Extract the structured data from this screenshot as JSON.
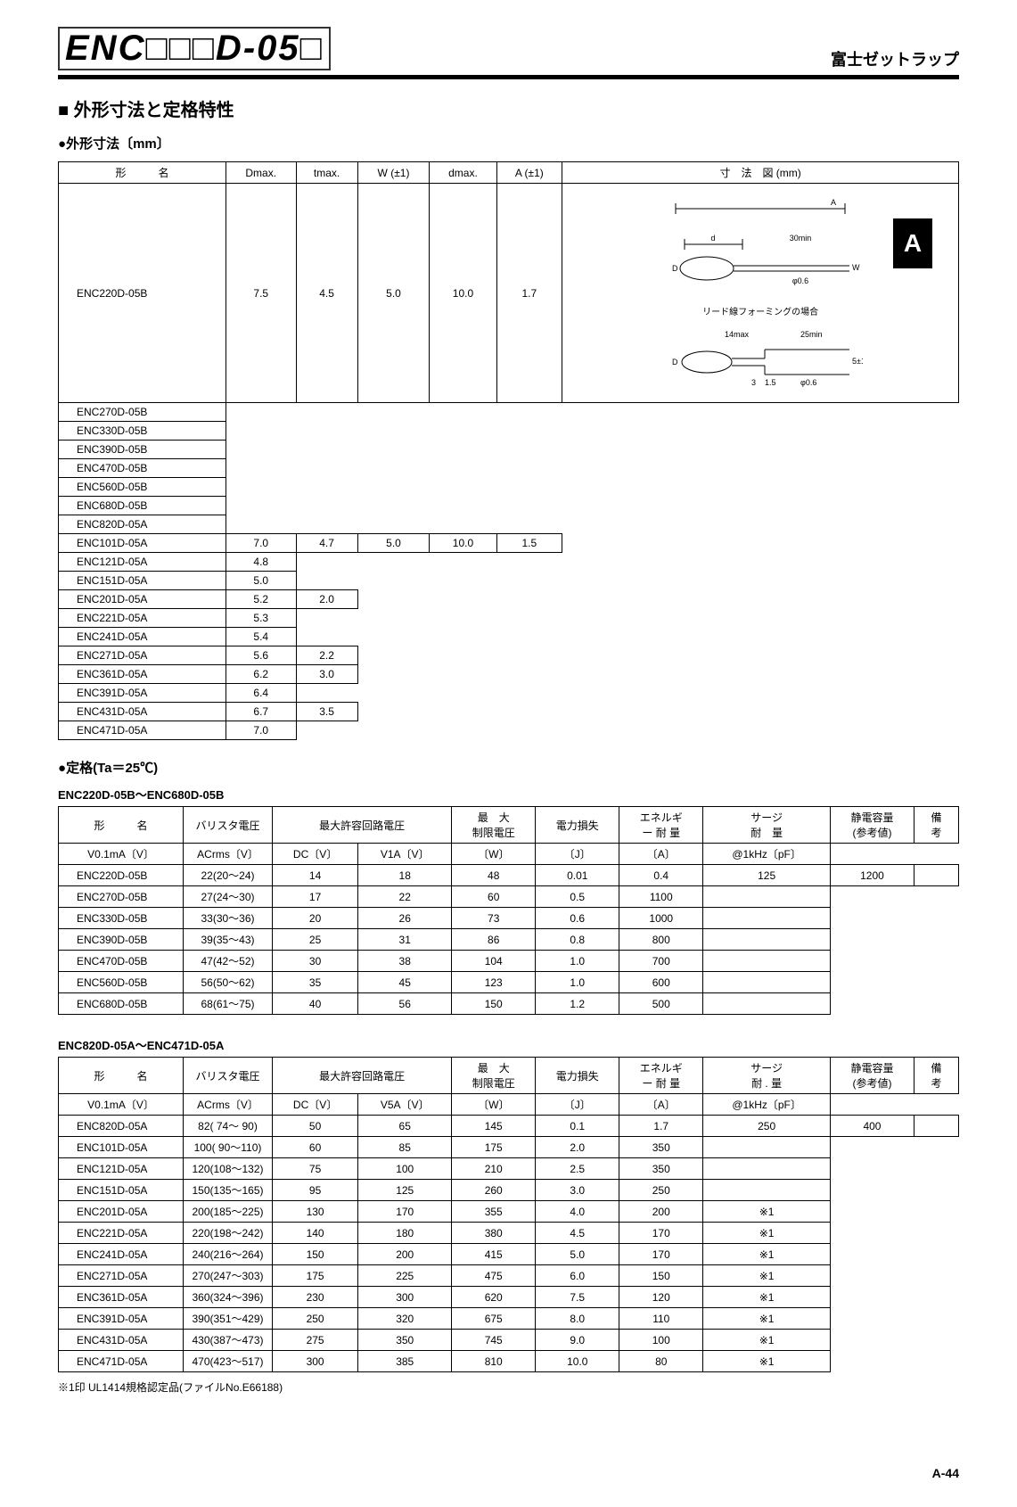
{
  "header": {
    "part_number": "ENC□□□D-05□",
    "brand": "富士ゼットラップ"
  },
  "side_tab": "A",
  "section1": {
    "title": "外形寸法と定格特性",
    "subsection": "外形寸法〔mm〕"
  },
  "dimensions_table": {
    "columns": [
      "形　　　名",
      "Dmax.",
      "tmax.",
      "W (±1)",
      "dmax.",
      "A (±1)",
      "寸　法　図 (mm)"
    ],
    "group1": {
      "names": [
        "ENC220D-05B",
        "ENC270D-05B",
        "ENC330D-05B",
        "ENC390D-05B",
        "ENC470D-05B",
        "ENC560D-05B",
        "ENC680D-05B",
        "ENC820D-05A"
      ],
      "Dmax": "7.5",
      "tmax": "4.5",
      "W": "5.0",
      "dmax": "10.0",
      "A": "1.7"
    },
    "group2": {
      "rows": [
        {
          "name": "ENC101D-05A",
          "tmax": "4.7",
          "A": "1.5"
        },
        {
          "name": "ENC121D-05A",
          "tmax": "4.8",
          "A": "1.5"
        },
        {
          "name": "ENC151D-05A",
          "tmax": "5.0",
          "A": "1.5"
        },
        {
          "name": "ENC201D-05A",
          "tmax": "5.2",
          "A": "2.0"
        },
        {
          "name": "ENC221D-05A",
          "tmax": "5.3",
          "A": "2.0"
        },
        {
          "name": "ENC241D-05A",
          "tmax": "5.4",
          "A": "2.0"
        },
        {
          "name": "ENC271D-05A",
          "tmax": "5.6",
          "A": "2.2"
        },
        {
          "name": "ENC361D-05A",
          "tmax": "6.2",
          "A": "3.0"
        },
        {
          "name": "ENC391D-05A",
          "tmax": "6.4",
          "A": "3.0"
        },
        {
          "name": "ENC431D-05A",
          "tmax": "6.7",
          "A": "3.5"
        },
        {
          "name": "ENC471D-05A",
          "tmax": "7.0",
          "A": "3.5"
        }
      ],
      "Dmax": "7.0",
      "W": "5.0",
      "dmax": "10.0",
      "diagram_caption": "リード線フォーミングの場合",
      "diagram_labels": {
        "l1": "30min",
        "l2": "14max",
        "l3": "25min",
        "d": "d",
        "D": "D",
        "phi": "φ0.6",
        "w": "W",
        "five": "5±1",
        "onefive": "1.5",
        "three": "3",
        "A": "A"
      }
    }
  },
  "ratings": {
    "subsection": "定格(Ta＝25℃)",
    "table1": {
      "label": "ENC220D-05B～ENC680D-05B",
      "header_row1": [
        "形　　　名",
        "バリスタ電圧",
        "最大許容回路電圧",
        "",
        "最　大\n制限電圧",
        "電力損失",
        "エネルギ\nー 耐 量",
        "サージ\n耐　量",
        "静電容量\n(参考値)",
        "備　　考"
      ],
      "header_row2": [
        "",
        "V0.1mA〔V〕",
        "ACrms〔V〕",
        "DC〔V〕",
        "V1A〔V〕",
        "〔W〕",
        "〔J〕",
        "〔A〕",
        "@1kHz〔pF〕",
        ""
      ],
      "rows": [
        {
          "name": "ENC220D-05B",
          "v": "22(20～24)",
          "ac": "14",
          "dc": "18",
          "vmax": "48",
          "w": "",
          "j": "0.4",
          "a": "",
          "c": "1200",
          "note": ""
        },
        {
          "name": "ENC270D-05B",
          "v": "27(24～30)",
          "ac": "17",
          "dc": "22",
          "vmax": "60",
          "w": "",
          "j": "0.5",
          "a": "",
          "c": "1100",
          "note": ""
        },
        {
          "name": "ENC330D-05B",
          "v": "33(30～36)",
          "ac": "20",
          "dc": "26",
          "vmax": "73",
          "w": "",
          "j": "0.6",
          "a": "",
          "c": "1000",
          "note": ""
        },
        {
          "name": "ENC390D-05B",
          "v": "39(35～43)",
          "ac": "25",
          "dc": "31",
          "vmax": "86",
          "w": "",
          "j": "0.8",
          "a": "",
          "c": "800",
          "note": ""
        },
        {
          "name": "ENC470D-05B",
          "v": "47(42～52)",
          "ac": "30",
          "dc": "38",
          "vmax": "104",
          "w": "",
          "j": "1.0",
          "a": "",
          "c": "700",
          "note": ""
        },
        {
          "name": "ENC560D-05B",
          "v": "56(50～62)",
          "ac": "35",
          "dc": "45",
          "vmax": "123",
          "w": "",
          "j": "1.0",
          "a": "",
          "c": "600",
          "note": ""
        },
        {
          "name": "ENC680D-05B",
          "v": "68(61～75)",
          "ac": "40",
          "dc": "56",
          "vmax": "150",
          "w": "",
          "j": "1.2",
          "a": "",
          "c": "500",
          "note": ""
        }
      ],
      "W_merged": "0.01",
      "A_merged": "125"
    },
    "table2": {
      "label": "ENC820D-05A～ENC471D-05A",
      "header_row1": [
        "形　　　名",
        "バリスタ電圧",
        "最大許容回路電圧",
        "",
        "最　大\n制限電圧",
        "電力損失",
        "エネルギ\nー 耐 量",
        "サージ\n耐 . 量",
        "静電容量\n(参考値)",
        "備　　考"
      ],
      "header_row2": [
        "",
        "V0.1mA〔V〕",
        "ACrms〔V〕",
        "DC〔V〕",
        "V5A〔V〕",
        "〔W〕",
        "〔J〕",
        "〔A〕",
        "@1kHz〔pF〕",
        ""
      ],
      "rows": [
        {
          "name": "ENC820D-05A",
          "v": "82( 74～ 90)",
          "ac": "50",
          "dc": "65",
          "vmax": "145",
          "j": "1.7",
          "c": "400",
          "note": ""
        },
        {
          "name": "ENC101D-05A",
          "v": "100( 90～110)",
          "ac": "60",
          "dc": "85",
          "vmax": "175",
          "j": "2.0",
          "c": "350",
          "note": ""
        },
        {
          "name": "ENC121D-05A",
          "v": "120(108～132)",
          "ac": "75",
          "dc": "100",
          "vmax": "210",
          "j": "2.5",
          "c": "350",
          "note": ""
        },
        {
          "name": "ENC151D-05A",
          "v": "150(135～165)",
          "ac": "95",
          "dc": "125",
          "vmax": "260",
          "j": "3.0",
          "c": "250",
          "note": ""
        },
        {
          "name": "ENC201D-05A",
          "v": "200(185～225)",
          "ac": "130",
          "dc": "170",
          "vmax": "355",
          "j": "4.0",
          "c": "200",
          "note": "※1"
        },
        {
          "name": "ENC221D-05A",
          "v": "220(198～242)",
          "ac": "140",
          "dc": "180",
          "vmax": "380",
          "j": "4.5",
          "c": "170",
          "note": "※1"
        },
        {
          "name": "ENC241D-05A",
          "v": "240(216～264)",
          "ac": "150",
          "dc": "200",
          "vmax": "415",
          "j": "5.0",
          "c": "170",
          "note": "※1"
        },
        {
          "name": "ENC271D-05A",
          "v": "270(247～303)",
          "ac": "175",
          "dc": "225",
          "vmax": "475",
          "j": "6.0",
          "c": "150",
          "note": "※1"
        },
        {
          "name": "ENC361D-05A",
          "v": "360(324～396)",
          "ac": "230",
          "dc": "300",
          "vmax": "620",
          "j": "7.5",
          "c": "120",
          "note": "※1"
        },
        {
          "name": "ENC391D-05A",
          "v": "390(351～429)",
          "ac": "250",
          "dc": "320",
          "vmax": "675",
          "j": "8.0",
          "c": "110",
          "note": "※1"
        },
        {
          "name": "ENC431D-05A",
          "v": "430(387～473)",
          "ac": "275",
          "dc": "350",
          "vmax": "745",
          "j": "9.0",
          "c": "100",
          "note": "※1"
        },
        {
          "name": "ENC471D-05A",
          "v": "470(423～517)",
          "ac": "300",
          "dc": "385",
          "vmax": "810",
          "j": "10.0",
          "c": "80",
          "note": "※1"
        }
      ],
      "W_merged": "0.1",
      "A_merged": "250"
    }
  },
  "footnote": "※1印 UL1414規格認定品(ファイルNo.E66188)",
  "page_number": "A-44"
}
